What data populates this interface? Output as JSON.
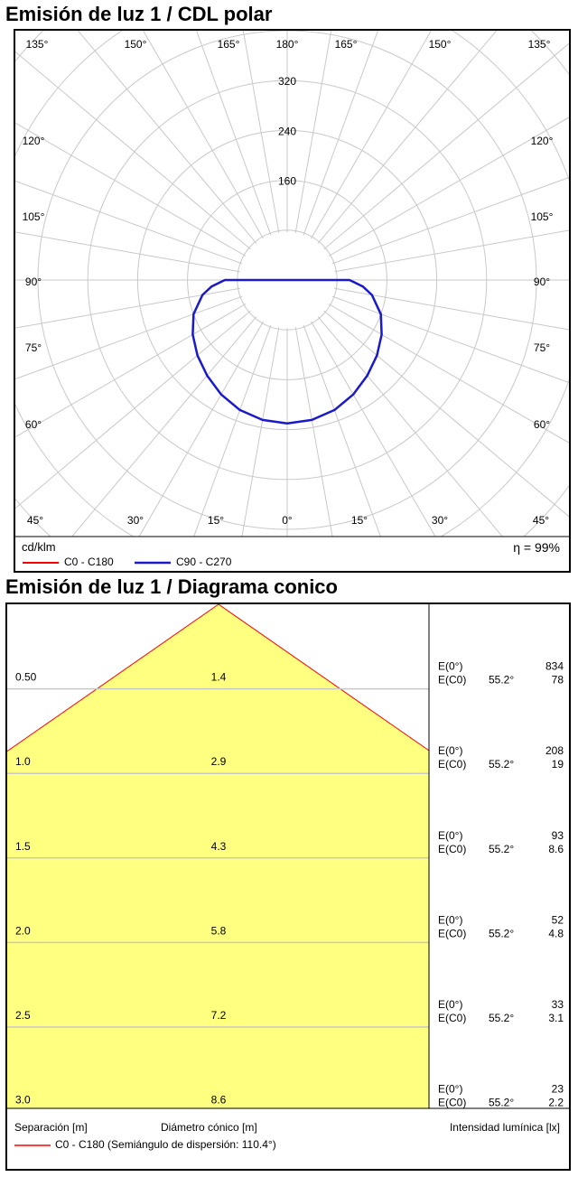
{
  "polar": {
    "title": "Emisión de luz 1 / CDL polar",
    "unit": "cd/klm",
    "efficiency": "η = 99%",
    "legend": [
      {
        "label": "C0 - C180",
        "color": "#ff0000"
      },
      {
        "label": "C90 - C270",
        "color": "#1a1acc"
      }
    ]
  },
  "cone": {
    "title": "Emisión de luz 1 / Diagrama conico",
    "footer": {
      "separation": "Separación [m]",
      "diameter": "Diámetro cónico [m]",
      "intensity": "Intensidad lumínica [lx]",
      "legend": "C0 - C180 (Semiángulo de dispersión: 110.4°)"
    },
    "e0_label": "E(0°)",
    "ec0_label": "E(C0)",
    "angle_label": "55.2°",
    "rows": [
      {
        "height": "0.50",
        "diameter": "1.4",
        "e0": "834",
        "ec0": "78"
      },
      {
        "height": "1.0",
        "diameter": "2.9",
        "e0": "208",
        "ec0": "19"
      },
      {
        "height": "1.5",
        "diameter": "4.3",
        "e0": "93",
        "ec0": "8.6"
      },
      {
        "height": "2.0",
        "diameter": "5.8",
        "e0": "52",
        "ec0": "4.8"
      },
      {
        "height": "2.5",
        "diameter": "7.2",
        "e0": "33",
        "ec0": "3.1"
      },
      {
        "height": "3.0",
        "diameter": "8.6",
        "e0": "23",
        "ec0": "2.2"
      }
    ]
  },
  "chart_data": [
    {
      "type": "line",
      "subtype": "polar",
      "title": "Emisión de luz 1 / CDL polar",
      "unit": "cd/klm",
      "angle_labels": [
        "135°",
        "150°",
        "165°",
        "180°",
        "165°",
        "150°",
        "135°",
        "120°",
        "105°",
        "90°",
        "75°",
        "60°",
        "45°",
        "30°",
        "15°",
        "0°",
        "15°",
        "30°",
        "45°"
      ],
      "radial_ticks": [
        160,
        240,
        320
      ],
      "rmax": 400,
      "series": [
        {
          "name": "C90 - C270",
          "color": "#1a1acc",
          "angles": [
            0,
            10,
            20,
            30,
            40,
            50,
            60,
            70,
            80,
            85,
            88,
            90
          ],
          "values": [
            230,
            228,
            222,
            212,
            200,
            188,
            175,
            160,
            138,
            122,
            108,
            100
          ]
        }
      ]
    },
    {
      "type": "table",
      "subtype": "cone",
      "title": "Emisión de luz 1 / Diagrama conico",
      "half_angle_deg": 55.2,
      "columns": [
        "Separación [m]",
        "Diámetro cónico [m]",
        "E(0°)",
        "E(C0)"
      ],
      "heights": [
        0.5,
        1.0,
        1.5,
        2.0,
        2.5,
        3.0
      ],
      "diameters": [
        1.4,
        2.9,
        4.3,
        5.8,
        7.2,
        8.6
      ],
      "e0": [
        834,
        208,
        93,
        52,
        33,
        23
      ],
      "ec0": [
        78,
        19,
        8.6,
        4.8,
        3.1,
        2.2
      ]
    }
  ]
}
